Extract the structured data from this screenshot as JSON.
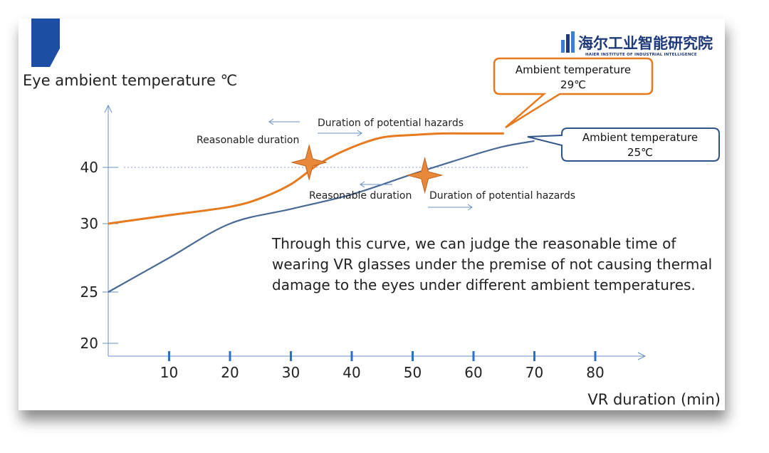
{
  "logo": {
    "name_cn": "海尔工业智能研究院",
    "name_en": "HAIER INSTITUTE OF INDUSTRIAL INTELLIGENCE"
  },
  "description": "Through this curve, we can judge the reasonable time of wearing VR glasses under the premise of not causing thermal damage to the eyes under different ambient temperatures.",
  "callouts": [
    {
      "line1": "Ambient  temperature",
      "line2": "29℃",
      "color": "#e67a1e"
    },
    {
      "line1": "Ambient  temperature",
      "line2": "25℃",
      "color": "#2f5486"
    }
  ],
  "annotations": {
    "upper_left": "Reasonable duration",
    "upper_right": "Duration of potential hazards",
    "lower_left": "Reasonable duration",
    "lower_right": "Duration of potential hazards"
  },
  "chart_data": {
    "type": "line",
    "xlabel": "VR duration (min)",
    "ylabel": "Eye ambient temperature ℃",
    "x_ticks": [
      10,
      20,
      30,
      40,
      50,
      60,
      70,
      80
    ],
    "y_ticks": [
      20,
      25,
      30,
      40
    ],
    "threshold": 40,
    "series": [
      {
        "name": "Ambient temperature 29℃",
        "color": "#e67a1e",
        "points": [
          [
            0,
            30
          ],
          [
            10,
            31.5
          ],
          [
            20,
            33
          ],
          [
            25,
            34.5
          ],
          [
            30,
            37
          ],
          [
            35,
            41
          ],
          [
            40,
            44
          ],
          [
            45,
            46
          ],
          [
            50,
            46.5
          ],
          [
            55,
            46.8
          ],
          [
            60,
            46.8
          ],
          [
            65,
            46.8
          ]
        ]
      },
      {
        "name": "Ambient temperature 25℃",
        "color": "#4a6a96",
        "points": [
          [
            0,
            25
          ],
          [
            10,
            27.5
          ],
          [
            20,
            30
          ],
          [
            30,
            32.6
          ],
          [
            40,
            35.2
          ],
          [
            50,
            38.8
          ],
          [
            60,
            42.5
          ],
          [
            65,
            44.2
          ],
          [
            70,
            45.3
          ]
        ]
      }
    ],
    "markers": [
      {
        "x": 33,
        "y": 41,
        "color": "#e8883a"
      },
      {
        "x": 52,
        "y": 38.6,
        "color": "#e8883a"
      }
    ]
  }
}
